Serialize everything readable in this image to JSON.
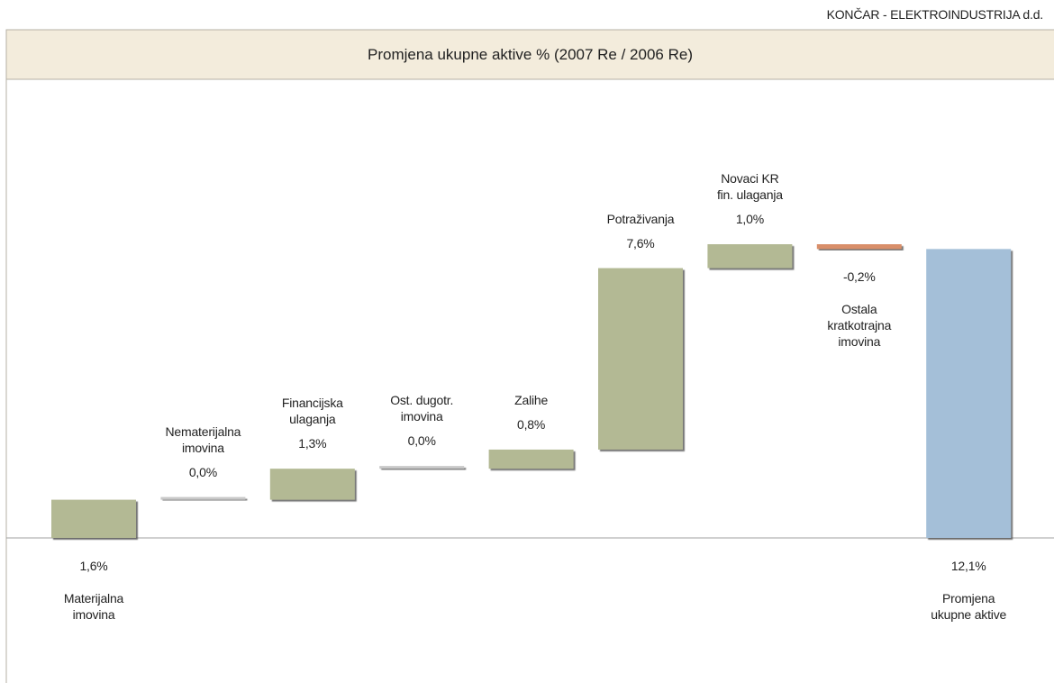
{
  "company": "KONČAR - ELEKTROINDUSTRIJA d.d.",
  "chart_data": {
    "type": "waterfall",
    "title": "Promjena ukupne aktive % (2007 Re / 2006 Re)",
    "categories": [
      "Materijalna\nimovina",
      "Nematerijalna\nimovina",
      "Financijska\nulaganja",
      "Ost. dugotr.\nimovina",
      "Zalihe",
      "Potraživanja",
      "Novaci KR\nfin. ulaganja",
      "Ostala\nkratkotrajna\nimovina",
      "Promjena\nukupne aktive"
    ],
    "values": [
      1.6,
      0.0,
      1.3,
      0.0,
      0.8,
      7.6,
      1.0,
      -0.2,
      12.1
    ],
    "value_labels": [
      "1,6%",
      "0,0%",
      "1,3%",
      "0,0%",
      "0,8%",
      "7,6%",
      "1,0%",
      "-0,2%",
      "12,1%"
    ],
    "colors": {
      "increase": "#b3b994",
      "decrease": "#d98f6b",
      "total": "#a4bfd8",
      "zero": "#c8c8c8"
    }
  }
}
